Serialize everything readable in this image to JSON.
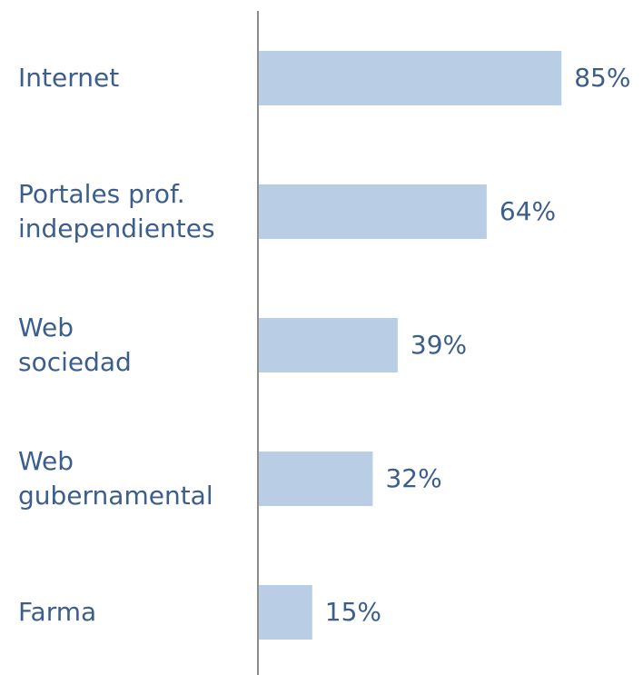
{
  "chart_data": {
    "type": "bar",
    "orientation": "horizontal",
    "categories": [
      "Internet",
      "Portales prof.\nindependientes",
      "Web\nsociedad",
      "Web\ngubernamental",
      "Farma"
    ],
    "values": [
      85,
      64,
      39,
      32,
      15
    ],
    "value_labels": [
      "85%",
      "64%",
      "39%",
      "32%",
      "15%"
    ],
    "color": "#b9cde5",
    "label_color": "#3b5e8c"
  }
}
